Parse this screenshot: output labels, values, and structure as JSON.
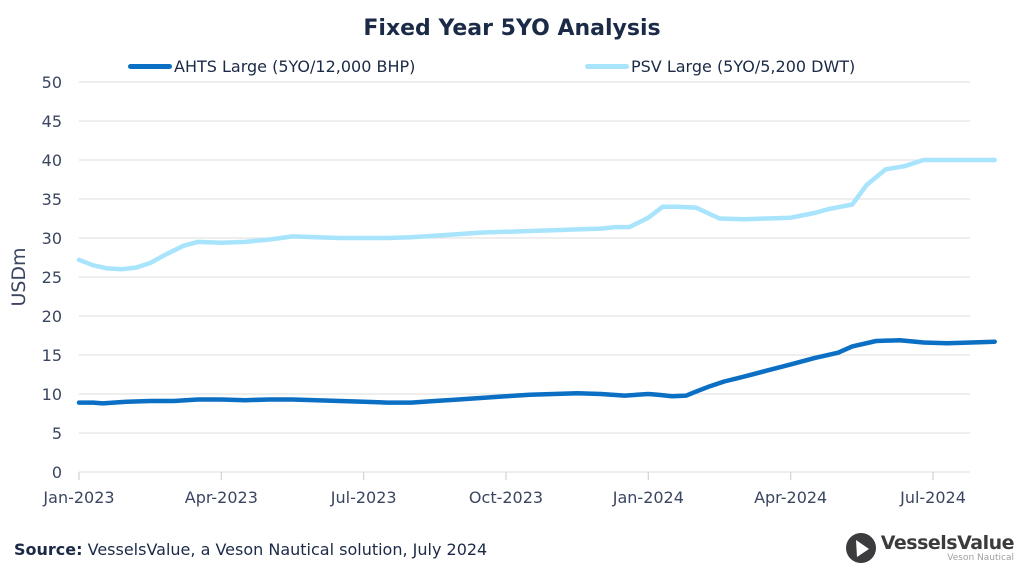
{
  "chart_data": {
    "type": "line",
    "title": "Fixed Year 5YO Analysis",
    "xlabel": "",
    "ylabel": "USDm",
    "ylim": [
      0,
      50
    ],
    "yticks": [
      0,
      5,
      10,
      15,
      20,
      25,
      30,
      35,
      40,
      45,
      50
    ],
    "xticks": [
      "Jan-2023",
      "Apr-2023",
      "Jul-2023",
      "Oct-2023",
      "Jan-2024",
      "Apr-2024",
      "Jul-2024"
    ],
    "x_unit": "months since Jan-2023",
    "xlim": [
      0,
      19.3
    ],
    "grid": true,
    "legend_position": "top",
    "series": [
      {
        "name": "AHTS Large (5YO/12,000 BHP)",
        "color": "#0b6fc4",
        "x": [
          0,
          0.3,
          0.5,
          1.0,
          1.5,
          2.0,
          2.5,
          3.0,
          3.5,
          4.0,
          4.5,
          5.0,
          5.5,
          6.0,
          6.5,
          7.0,
          7.5,
          8.0,
          8.5,
          9.0,
          9.5,
          10.0,
          10.5,
          11.0,
          11.5,
          12.0,
          12.2,
          12.5,
          12.8,
          13.0,
          13.3,
          13.6,
          14.0,
          14.5,
          15.0,
          15.5,
          16.0,
          16.3,
          16.8,
          17.3,
          17.8,
          18.3,
          18.8,
          19.3
        ],
        "values": [
          8.9,
          8.9,
          8.8,
          9.0,
          9.1,
          9.1,
          9.3,
          9.3,
          9.2,
          9.3,
          9.3,
          9.2,
          9.1,
          9.0,
          8.9,
          8.9,
          9.1,
          9.3,
          9.5,
          9.7,
          9.9,
          10.0,
          10.1,
          10.0,
          9.8,
          10.0,
          9.9,
          9.7,
          9.8,
          10.3,
          11.0,
          11.6,
          12.2,
          13.0,
          13.8,
          14.6,
          15.3,
          16.1,
          16.8,
          16.9,
          16.6,
          16.5,
          16.6,
          16.7
        ]
      },
      {
        "name": "PSV Large (5YO/5,200 DWT)",
        "color": "#a8e4fb",
        "x": [
          0,
          0.3,
          0.6,
          0.9,
          1.2,
          1.5,
          1.8,
          2.2,
          2.5,
          3.0,
          3.5,
          4.0,
          4.5,
          5.0,
          5.5,
          6.0,
          6.5,
          7.0,
          7.5,
          8.0,
          8.5,
          9.0,
          9.5,
          10.0,
          10.5,
          11.0,
          11.3,
          11.6,
          12.0,
          12.3,
          12.6,
          13.0,
          13.5,
          14.0,
          14.5,
          15.0,
          15.5,
          15.8,
          16.3,
          16.6,
          17.0,
          17.4,
          17.8,
          18.3,
          18.8,
          19.3
        ],
        "values": [
          27.2,
          26.5,
          26.1,
          26.0,
          26.2,
          26.8,
          27.8,
          29.0,
          29.5,
          29.4,
          29.5,
          29.8,
          30.2,
          30.1,
          30.0,
          30.0,
          30.0,
          30.1,
          30.3,
          30.5,
          30.7,
          30.8,
          30.9,
          31.0,
          31.1,
          31.2,
          31.4,
          31.4,
          32.6,
          34.0,
          34.0,
          33.9,
          32.5,
          32.4,
          32.5,
          32.6,
          33.2,
          33.7,
          34.3,
          36.8,
          38.8,
          39.2,
          40.0,
          40.0,
          40.0,
          40.0
        ]
      }
    ]
  },
  "footer": {
    "source_label": "Source:",
    "source_text": " VesselsValue, a Veson Nautical solution, July 2024"
  },
  "logo": {
    "name": "VesselsValue",
    "subtitle": "Veson Nautical"
  },
  "colors": {
    "title": "#1b2a47",
    "grid": "#e3e3e3"
  }
}
